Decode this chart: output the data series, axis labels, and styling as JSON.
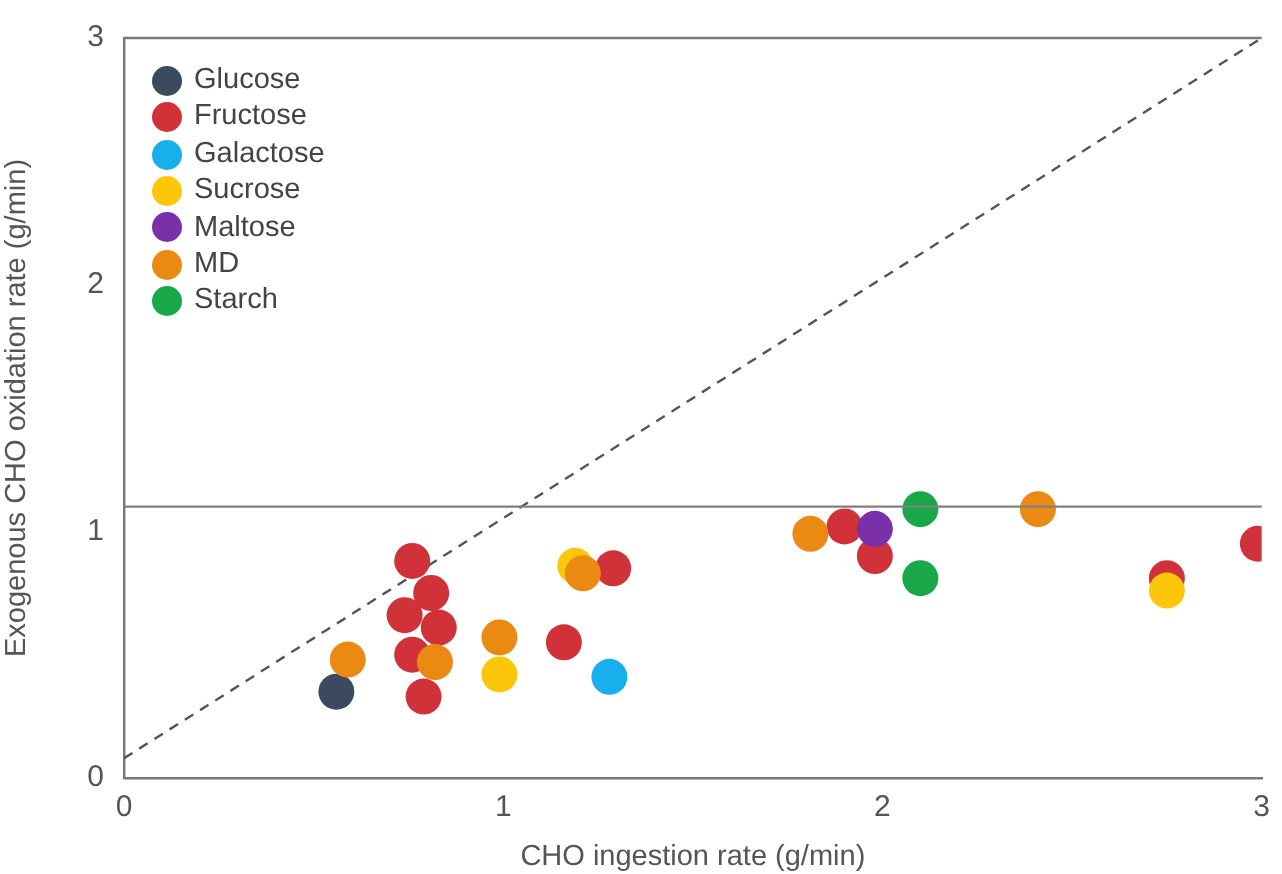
{
  "chart_data": {
    "type": "scatter",
    "xlabel": "CHO ingestion rate (g/min)",
    "ylabel": "Exogenous CHO oxidation rate (g/min)",
    "xlim": [
      0,
      3
    ],
    "xticks": [
      0,
      1,
      2,
      3
    ],
    "ylim": [
      0,
      3
    ],
    "yticks": [
      0,
      1,
      2,
      3
    ],
    "grid": false,
    "legend": "top left",
    "marker": "circle",
    "ref_lines": [
      {
        "axis": "y",
        "value": 1.1,
        "label": null,
        "color": "#808080",
        "line_style": "solid"
      }
    ],
    "series": [
      {
        "name": "Glucose",
        "color": "#3b4a5e",
        "x": [
          0.56
        ],
        "values": [
          0.35
        ]
      },
      {
        "name": "Fructose",
        "color": "#d1323a",
        "x": [
          0.76,
          0.81,
          0.74,
          0.83,
          0.76,
          0.79,
          1.29,
          1.16,
          1.9,
          1.98,
          2.75,
          2.99
        ],
        "values": [
          0.88,
          0.75,
          0.66,
          0.61,
          0.5,
          0.33,
          0.85,
          0.55,
          1.02,
          0.9,
          0.81,
          0.95
        ]
      },
      {
        "name": "Galactose",
        "color": "#17b0ec",
        "x": [
          1.28
        ],
        "values": [
          0.41
        ]
      },
      {
        "name": "Sucrose",
        "color": "#fcc70b",
        "x": [
          1.19,
          0.99,
          2.75
        ],
        "values": [
          0.86,
          0.42,
          0.76
        ]
      },
      {
        "name": "Maltose",
        "color": "#7a30a8",
        "x": [
          1.98
        ],
        "values": [
          1.01
        ]
      },
      {
        "name": "MD",
        "color": "#ea8a12",
        "x": [
          0.59,
          0.82,
          0.99,
          1.21,
          1.81,
          2.41
        ],
        "values": [
          0.48,
          0.47,
          0.57,
          0.83,
          0.99,
          1.09
        ]
      },
      {
        "name": "Starch",
        "color": "#18a84a",
        "x": [
          2.1,
          2.1
        ],
        "values": [
          1.09,
          0.81
        ]
      },
      {
        "type": "line",
        "color": "#555555",
        "line_style": "dashed",
        "marker": "none",
        "x": [
          0,
          3
        ],
        "values": [
          0.08,
          3
        ]
      }
    ]
  }
}
